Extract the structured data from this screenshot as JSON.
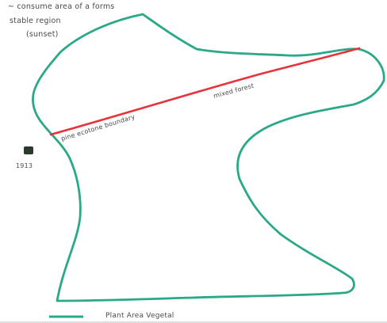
{
  "notes": {
    "line1": "~ consume area of a forms",
    "line2": "stable region",
    "line3": "(sunset)"
  },
  "red_line_labels": {
    "left": "pine ecotone boundary",
    "right": "mixed forest"
  },
  "marker": {
    "label": "1913"
  },
  "legend": {
    "label": "Plant Area Vegetal"
  },
  "colors": {
    "outline": "#2aa888",
    "boundary": "#e8333b",
    "marker": "#2b3a2c",
    "text": "#4a4a4a"
  }
}
